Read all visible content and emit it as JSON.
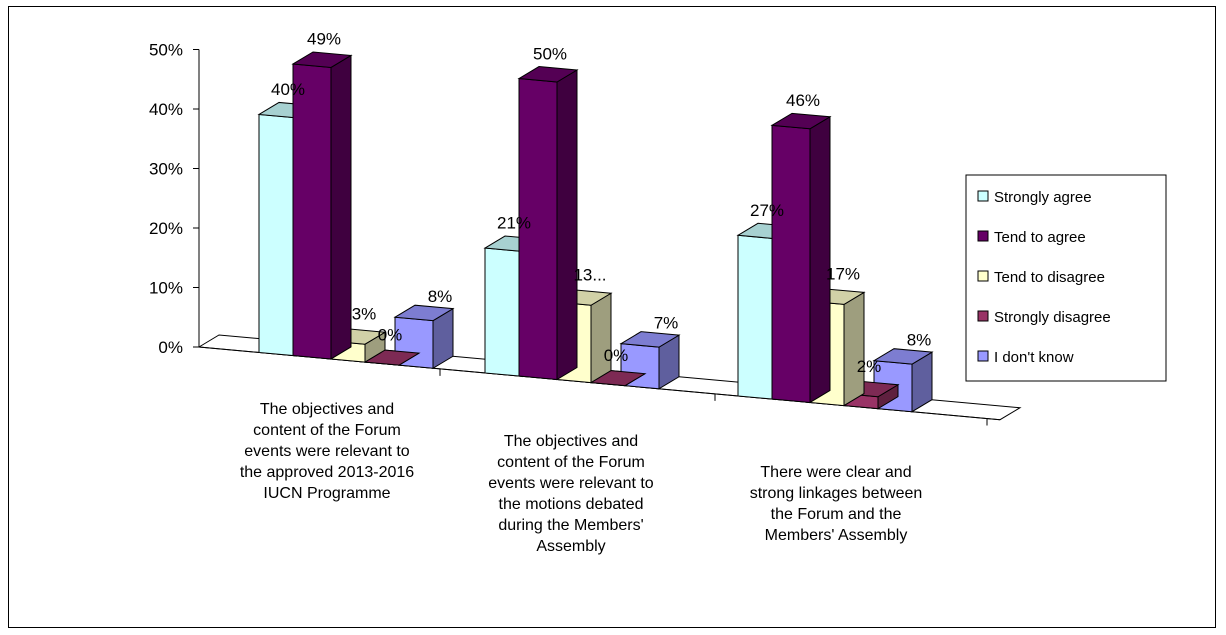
{
  "chart_data": {
    "type": "bar",
    "projection": "3d-clustered-column",
    "yticks": [
      "0%",
      "10%",
      "20%",
      "30%",
      "40%",
      "50%"
    ],
    "ylim": [
      0,
      50
    ],
    "grid": false,
    "legend_position": "right",
    "categories": [
      [
        "The objectives and",
        "content of the Forum",
        "events were relevant to",
        "the approved 2013-2016",
        "IUCN Programme"
      ],
      [
        "The objectives and",
        "content of the Forum",
        "events were relevant to",
        "the motions debated",
        "during the Members'",
        "Assembly"
      ],
      [
        "There were clear and",
        "strong linkages between",
        "the Forum and the",
        "Members' Assembly"
      ]
    ],
    "series": [
      {
        "name": "Strongly agree",
        "values": [
          40,
          21,
          27
        ],
        "labels": [
          "40%",
          "21%",
          "27%"
        ],
        "color": "#ccffff"
      },
      {
        "name": "Tend to agree",
        "values": [
          49,
          50,
          46
        ],
        "labels": [
          "49%",
          "50%",
          "46%"
        ],
        "color": "#660066"
      },
      {
        "name": "Tend to disagree",
        "values": [
          3,
          13,
          17
        ],
        "labels": [
          "3%",
          "13...",
          "17%"
        ],
        "color": "#ffffcc"
      },
      {
        "name": "Strongly disagree",
        "values": [
          0,
          0,
          2
        ],
        "labels": [
          "0%",
          "0%",
          "2%"
        ],
        "color": "#993366"
      },
      {
        "name": "I don't know",
        "values": [
          8,
          7,
          8
        ],
        "labels": [
          "8%",
          "7%",
          "8%"
        ],
        "color": "#9999ff"
      }
    ]
  }
}
